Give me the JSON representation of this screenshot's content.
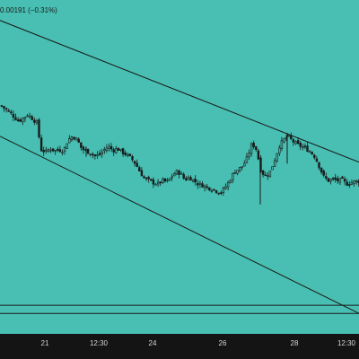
{
  "header": {
    "change_text": "0.00191 (−0.31%)"
  },
  "chart_data": {
    "type": "candlestick",
    "x_tick_labels": [
      "21",
      "12:30",
      "24",
      "26",
      "28",
      "12:30"
    ],
    "background_color": "#48bfb2",
    "candle_color": "#1a1a1a",
    "line_color": "#1a1a1a",
    "axis_strip_color": "#141414",
    "trendlines": [
      {
        "name": "upper-trendline",
        "from": [
          0,
          0.64
        ],
        "to": [
          400,
          0.432
        ]
      },
      {
        "name": "lower-trendline",
        "from": [
          0,
          0.47
        ],
        "to": [
          400,
          0.21
        ]
      }
    ],
    "horizontal_levels": [
      0.222,
      0.21
    ],
    "y_range": [
      0.18,
      0.67
    ],
    "x_range": [
      0,
      400
    ],
    "close_series": [
      [
        0,
        0.515
      ],
      [
        10,
        0.505
      ],
      [
        20,
        0.492
      ],
      [
        30,
        0.502
      ],
      [
        40,
        0.49
      ],
      [
        45,
        0.45
      ],
      [
        50,
        0.447
      ],
      [
        55,
        0.452
      ],
      [
        60,
        0.449
      ],
      [
        65,
        0.45
      ],
      [
        70,
        0.449
      ],
      [
        75,
        0.465
      ],
      [
        80,
        0.47
      ],
      [
        85,
        0.465
      ],
      [
        90,
        0.452
      ],
      [
        95,
        0.448
      ],
      [
        100,
        0.446
      ],
      [
        105,
        0.441
      ],
      [
        110,
        0.443
      ],
      [
        115,
        0.45
      ],
      [
        120,
        0.455
      ],
      [
        125,
        0.449
      ],
      [
        130,
        0.452
      ],
      [
        135,
        0.447
      ],
      [
        140,
        0.443
      ],
      [
        145,
        0.438
      ],
      [
        150,
        0.43
      ],
      [
        155,
        0.418
      ],
      [
        160,
        0.408
      ],
      [
        165,
        0.405
      ],
      [
        170,
        0.402
      ],
      [
        175,
        0.4
      ],
      [
        180,
        0.405
      ],
      [
        185,
        0.403
      ],
      [
        190,
        0.41
      ],
      [
        195,
        0.418
      ],
      [
        200,
        0.416
      ],
      [
        205,
        0.406
      ],
      [
        210,
        0.41
      ],
      [
        215,
        0.405
      ],
      [
        220,
        0.4
      ],
      [
        225,
        0.398
      ],
      [
        230,
        0.395
      ],
      [
        235,
        0.393
      ],
      [
        240,
        0.39
      ],
      [
        245,
        0.387
      ],
      [
        250,
        0.395
      ],
      [
        255,
        0.405
      ],
      [
        260,
        0.418
      ],
      [
        265,
        0.422
      ],
      [
        270,
        0.427
      ],
      [
        275,
        0.44
      ],
      [
        280,
        0.46
      ],
      [
        285,
        0.45
      ],
      [
        290,
        0.418
      ],
      [
        295,
        0.412
      ],
      [
        300,
        0.418
      ],
      [
        305,
        0.435
      ],
      [
        310,
        0.455
      ],
      [
        315,
        0.465
      ],
      [
        320,
        0.47
      ],
      [
        325,
        0.463
      ],
      [
        330,
        0.458
      ],
      [
        335,
        0.455
      ],
      [
        340,
        0.452
      ],
      [
        345,
        0.447
      ],
      [
        350,
        0.44
      ],
      [
        355,
        0.425
      ],
      [
        360,
        0.41
      ],
      [
        365,
        0.405
      ],
      [
        370,
        0.407
      ],
      [
        375,
        0.405
      ],
      [
        380,
        0.406
      ],
      [
        385,
        0.4
      ],
      [
        390,
        0.402
      ],
      [
        395,
        0.404
      ],
      [
        400,
        0.404
      ]
    ]
  }
}
